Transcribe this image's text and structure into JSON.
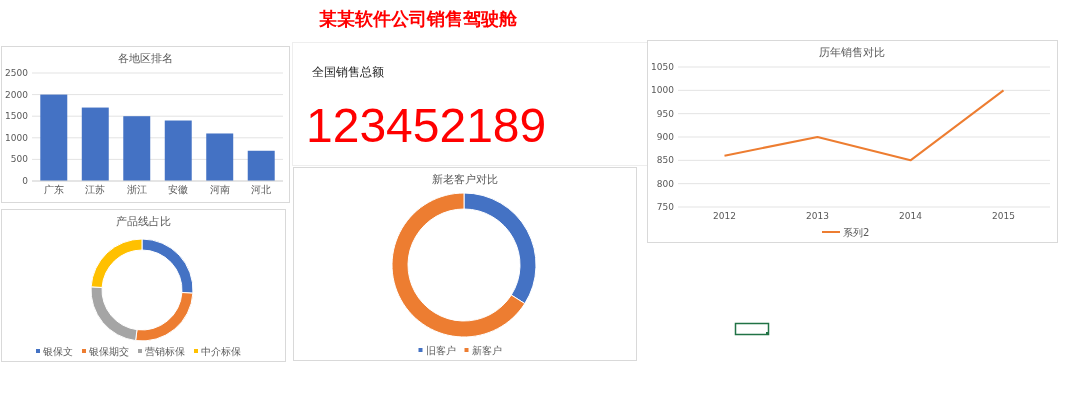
{
  "chart_data": [
    {
      "type": "other",
      "title": "某某软件公司销售驾驶舱",
      "subtitle": "全国销售总额",
      "annotations": [
        "123452189"
      ]
    },
    {
      "type": "bar",
      "title": "各地区排名",
      "categories": [
        "广东",
        "江苏",
        "浙江",
        "安徽",
        "河南",
        "河北"
      ],
      "values": [
        2000,
        1700,
        1500,
        1400,
        1100,
        700
      ],
      "color": "#4472c4",
      "ylim": [
        0,
        2500
      ],
      "yticks": [
        0,
        500,
        1000,
        1500,
        2000,
        2500
      ],
      "grid": "y",
      "legend": false
    },
    {
      "type": "line",
      "title": "历年销售对比",
      "categories": [
        "2012",
        "2013",
        "2014",
        "2015"
      ],
      "series": [
        {
          "name": "系列2",
          "color": "#ed7d31",
          "values": [
            860,
            900,
            850,
            1000
          ]
        }
      ],
      "ylim": [
        750,
        1050
      ],
      "yticks": [
        750,
        800,
        850,
        900,
        950,
        1000,
        1050
      ],
      "grid": "y",
      "legend": "bottom",
      "marker": "none"
    },
    {
      "type": "donut",
      "title": "产品线占比",
      "categories": [
        "银保文",
        "银保期交",
        "营销标保",
        "中介标保"
      ],
      "values": [
        26,
        26,
        24,
        24
      ],
      "colors": [
        "#4472c4",
        "#ed7d31",
        "#a5a5a5",
        "#ffc000"
      ],
      "legend": "bottom"
    },
    {
      "type": "donut",
      "title": "新老客户对比",
      "categories": [
        "旧客户",
        "新客户"
      ],
      "values": [
        34,
        66
      ],
      "colors": [
        "#4472c4",
        "#ed7d31"
      ],
      "legend": "bottom"
    }
  ]
}
